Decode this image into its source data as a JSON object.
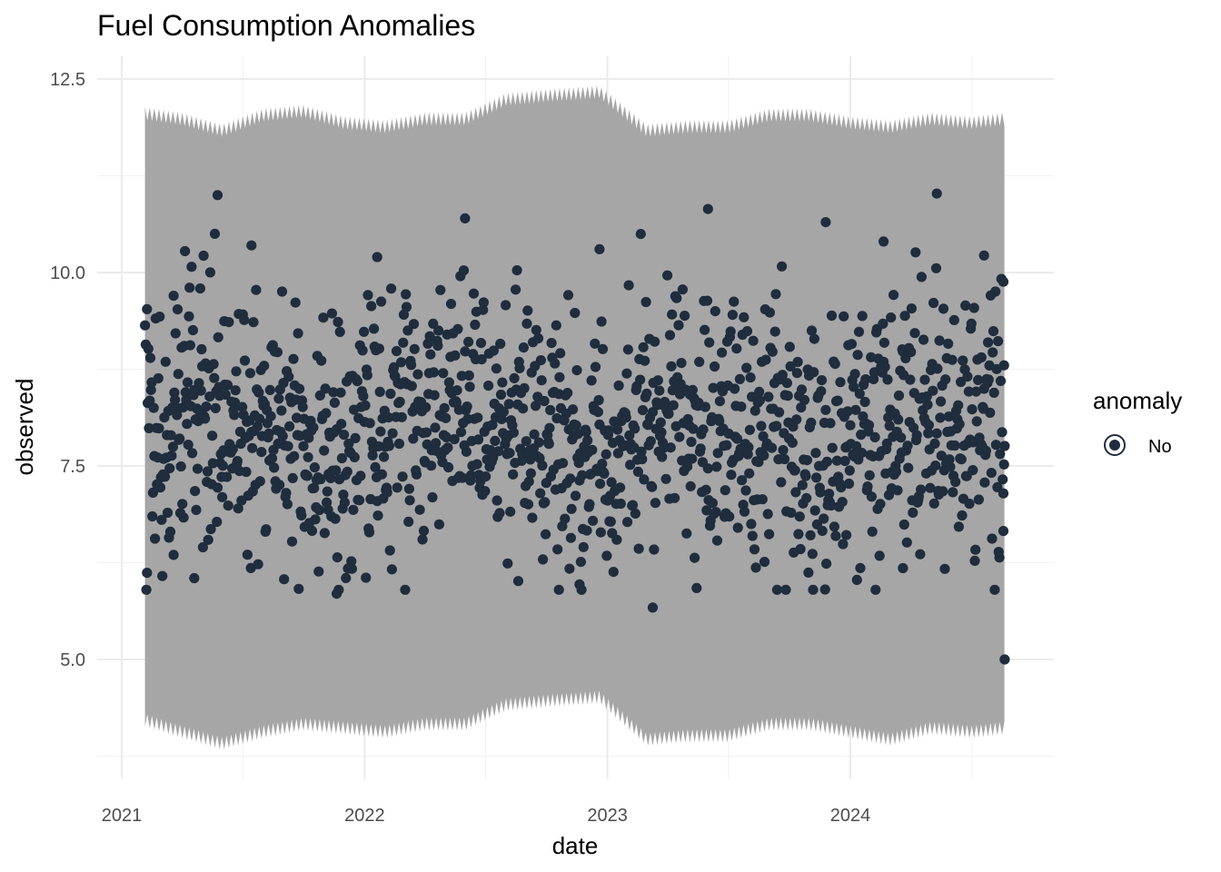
{
  "chart_data": {
    "type": "scatter",
    "title": "Fuel Consumption Anomalies",
    "xlabel": "date",
    "ylabel": "observed",
    "x_ticks": [
      "2021",
      "2022",
      "2023",
      "2024"
    ],
    "y_ticks": [
      "5.0",
      "7.5",
      "10.0",
      "12.5"
    ],
    "xlim": [
      "2020-12-31",
      "2024-09-30"
    ],
    "ylim": [
      3.8,
      12.8
    ],
    "grid": true,
    "legend": {
      "title": "anomaly",
      "placement": "right",
      "entries": [
        {
          "label": "No",
          "color": "#1f2d3d"
        }
      ]
    },
    "colors": {
      "band": "#a6a6a6",
      "point": "#1f2d3d",
      "grid": "#ebebeb"
    },
    "band": {
      "description_free": true,
      "date": [
        "2021-02-05",
        "2021-04-01",
        "2021-06-01",
        "2021-08-01",
        "2021-10-01",
        "2021-12-01",
        "2022-02-01",
        "2022-04-01",
        "2022-06-01",
        "2022-08-01",
        "2022-10-01",
        "2022-12-20",
        "2023-03-01",
        "2023-05-01",
        "2023-07-01",
        "2023-09-01",
        "2023-11-01",
        "2024-01-01",
        "2024-03-01",
        "2024-05-01",
        "2024-07-01",
        "2024-08-20"
      ],
      "upper": [
        12.02,
        11.95,
        11.8,
        12.0,
        12.05,
        11.9,
        11.85,
        11.95,
        11.95,
        12.2,
        12.25,
        12.3,
        11.8,
        11.85,
        11.85,
        12.0,
        12.0,
        11.9,
        11.85,
        11.95,
        11.9,
        11.95
      ],
      "lower": [
        4.25,
        4.1,
        3.95,
        4.1,
        4.2,
        4.15,
        4.1,
        4.2,
        4.2,
        4.45,
        4.5,
        4.55,
        4.0,
        4.05,
        4.05,
        4.2,
        4.2,
        4.1,
        4.0,
        4.15,
        4.1,
        4.15
      ]
    },
    "series": [
      {
        "name": "No",
        "start_date": "2021-02-05",
        "end_date": "2024-08-20",
        "notable_points": [
          {
            "x": "2021-05-25",
            "y": 11.0
          },
          {
            "x": "2022-06-01",
            "y": 10.7
          },
          {
            "x": "2023-06-01",
            "y": 10.82
          },
          {
            "x": "2024-05-10",
            "y": 11.02
          },
          {
            "x": "2021-11-20",
            "y": 5.85
          },
          {
            "x": "2023-03-10",
            "y": 5.67
          },
          {
            "x": "2024-08-20",
            "y": 5.0
          },
          {
            "x": "2021-03-20",
            "y": 9.7
          },
          {
            "x": "2021-07-15",
            "y": 10.35
          },
          {
            "x": "2022-01-20",
            "y": 10.2
          },
          {
            "x": "2022-12-20",
            "y": 10.3
          },
          {
            "x": "2023-11-25",
            "y": 10.65
          },
          {
            "x": "2024-02-20",
            "y": 10.4
          },
          {
            "x": "2024-07-20",
            "y": 10.22
          },
          {
            "x": "2021-02-08",
            "y": 6.12
          },
          {
            "x": "2021-04-20",
            "y": 6.05
          },
          {
            "x": "2022-10-20",
            "y": 5.9
          },
          {
            "x": "2022-11-20",
            "y": 5.97
          },
          {
            "x": "2024-03-20",
            "y": 6.18
          },
          {
            "x": "2024-08-18",
            "y": 9.88
          },
          {
            "x": "2024-08-19",
            "y": 8.8
          },
          {
            "x": "2024-08-18",
            "y": 6.66
          }
        ]
      }
    ]
  }
}
